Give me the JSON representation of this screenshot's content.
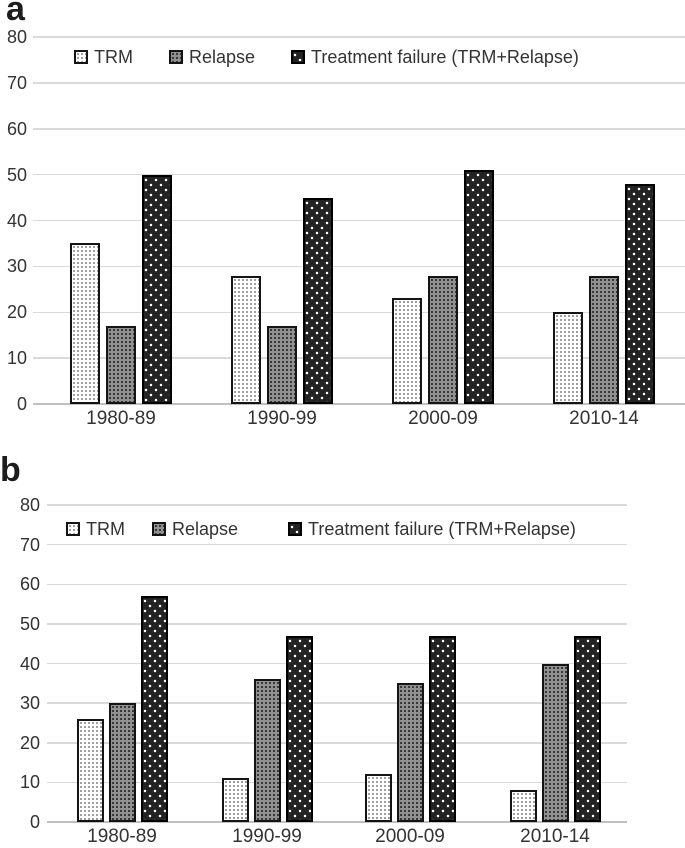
{
  "figure": {
    "description": "Two-panel grouped bar chart comparing outcomes across decades",
    "panels": [
      "a",
      "b"
    ]
  },
  "chart_data": [
    {
      "type": "bar",
      "panel_label": "a",
      "title": "",
      "xlabel": "",
      "ylabel": "",
      "categories": [
        "1980-89",
        "1990-99",
        "2000-09",
        "2010-14"
      ],
      "series": [
        {
          "name": "TRM",
          "values": [
            35,
            28,
            23,
            20
          ]
        },
        {
          "name": "Relapse",
          "values": [
            17,
            17,
            28,
            28
          ]
        },
        {
          "name": "Treatment failure (TRM+Relapse)",
          "values": [
            50,
            45,
            51,
            48
          ]
        }
      ],
      "ylim": [
        0,
        80
      ],
      "yticks": [
        0,
        10,
        20,
        30,
        40,
        50,
        60,
        70,
        80
      ],
      "grid": true,
      "legend_position": "top-inside"
    },
    {
      "type": "bar",
      "panel_label": "b",
      "title": "",
      "xlabel": "",
      "ylabel": "",
      "categories": [
        "1980-89",
        "1990-99",
        "2000-09",
        "2010-14"
      ],
      "series": [
        {
          "name": "TRM",
          "values": [
            26,
            11,
            12,
            8
          ]
        },
        {
          "name": "Relapse",
          "values": [
            30,
            36,
            35,
            40
          ]
        },
        {
          "name": "Treatment failure (TRM+Relapse)",
          "values": [
            57,
            47,
            47,
            47
          ]
        }
      ],
      "ylim": [
        0,
        80
      ],
      "yticks": [
        0,
        10,
        20,
        30,
        40,
        50,
        60,
        70,
        80
      ],
      "grid": true,
      "legend_position": "top-inside"
    }
  ],
  "styles": {
    "series": [
      {
        "name": "TRM",
        "fill": "#ffffff",
        "dot": "#999999"
      },
      {
        "name": "Relapse",
        "fill": "#919191",
        "dot": "#333333"
      },
      {
        "name": "Treatment failure (TRM+Relapse)",
        "fill": "#232323",
        "dot": "#ffffff"
      }
    ],
    "grid_color": "#d9d9d9",
    "axis_color": "#bfbfbf",
    "text_color": "#333333",
    "background": "#ffffff"
  }
}
